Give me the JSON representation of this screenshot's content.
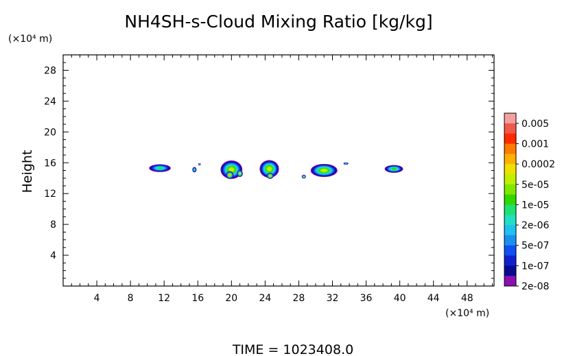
{
  "chart_data": {
    "type": "heatmap",
    "title": "NH4SH-s-Cloud Mixing Ratio [kg/kg]",
    "ylabel": "Height",
    "x_unit_label": "(×10⁴ m)",
    "y_unit_label": "(×10⁴ m)",
    "footer": "TIME = 1023408.0",
    "xlim": [
      0,
      51.2
    ],
    "ylim": [
      0,
      30
    ],
    "x_ticks": [
      4,
      8,
      12,
      16,
      20,
      24,
      28,
      32,
      36,
      40,
      44,
      48
    ],
    "y_ticks": [
      4,
      8,
      12,
      16,
      20,
      24,
      28
    ],
    "colorbar": {
      "labels": [
        "0.005",
        "0.001",
        "0.0002",
        "5e-05",
        "1e-05",
        "2e-06",
        "5e-07",
        "1e-07",
        "2e-08"
      ],
      "colors": [
        "#f4a0a0",
        "#f05a4a",
        "#ff2a00",
        "#ff7a00",
        "#ffb000",
        "#f0e000",
        "#bff000",
        "#80e800",
        "#30d800",
        "#20e070",
        "#20e0c0",
        "#20c0f0",
        "#1a90f0",
        "#1050f0",
        "#1020d0",
        "#0a0a90",
        "#8a10b0"
      ]
    },
    "clouds": [
      {
        "x": 11.5,
        "y": 15.3,
        "w": 2.6,
        "h": 1.0,
        "level": 7
      },
      {
        "x": 15.6,
        "y": 15.1,
        "w": 0.5,
        "h": 0.7,
        "level": 7
      },
      {
        "x": 16.2,
        "y": 15.8,
        "w": 0.3,
        "h": 0.3,
        "level": 6
      },
      {
        "x": 20.0,
        "y": 15.1,
        "w": 2.6,
        "h": 2.4,
        "level": 10
      },
      {
        "x": 19.8,
        "y": 14.4,
        "w": 0.9,
        "h": 1.0,
        "level": 12
      },
      {
        "x": 21.0,
        "y": 14.6,
        "w": 0.7,
        "h": 0.9,
        "level": 11
      },
      {
        "x": 24.5,
        "y": 15.2,
        "w": 2.3,
        "h": 2.3,
        "level": 10
      },
      {
        "x": 24.6,
        "y": 14.3,
        "w": 0.8,
        "h": 0.8,
        "level": 12
      },
      {
        "x": 28.6,
        "y": 14.2,
        "w": 0.5,
        "h": 0.5,
        "level": 9
      },
      {
        "x": 31.0,
        "y": 15.0,
        "w": 3.2,
        "h": 1.7,
        "level": 10
      },
      {
        "x": 33.6,
        "y": 15.9,
        "w": 0.6,
        "h": 0.3,
        "level": 6
      },
      {
        "x": 39.3,
        "y": 15.2,
        "w": 2.2,
        "h": 1.0,
        "level": 8
      }
    ]
  }
}
